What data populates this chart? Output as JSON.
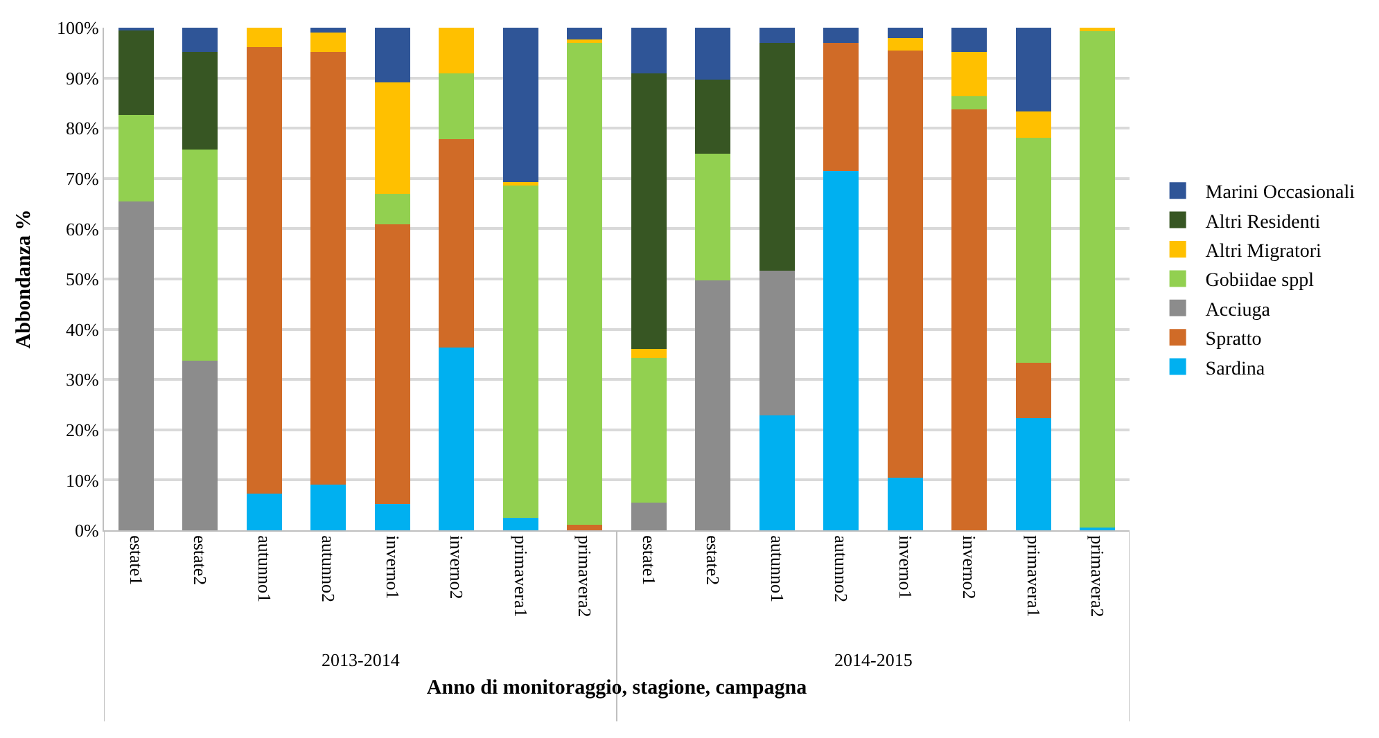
{
  "chart_data": {
    "type": "bar",
    "stacked": true,
    "xlabel": "Anno di monitoraggio, stagione, campagna",
    "ylabel": "Abbondanza %",
    "categories": [
      "estate1",
      "estate2",
      "autunno1",
      "autunno2",
      "inverno1",
      "inverno2",
      "primavera1",
      "primavera2",
      "estate1",
      "estate2",
      "autunno1",
      "autunno2",
      "inverno1",
      "inverno2",
      "primavera1",
      "primavera2"
    ],
    "annotations": [
      "2013-2014",
      "2014-2015"
    ],
    "ylim": [
      0,
      100
    ],
    "yticks": [
      {
        "value": 0,
        "label": "0%"
      },
      {
        "value": 10,
        "label": "10%"
      },
      {
        "value": 20,
        "label": "20%"
      },
      {
        "value": 30,
        "label": "30%"
      },
      {
        "value": 40,
        "label": "40%"
      },
      {
        "value": 50,
        "label": "50%"
      },
      {
        "value": 60,
        "label": "60%"
      },
      {
        "value": 70,
        "label": "70%"
      },
      {
        "value": 80,
        "label": "80%"
      },
      {
        "value": 90,
        "label": "90%"
      },
      {
        "value": 100,
        "label": "100%"
      }
    ],
    "grid": "y",
    "legend": "right",
    "series": [
      {
        "name": "Sardina",
        "color": "#00b0f0",
        "values": [
          0,
          0,
          7.3,
          9.1,
          5.2,
          36.4,
          2.5,
          0,
          0,
          0,
          22.9,
          71.5,
          10.5,
          0,
          22.3,
          0.6
        ]
      },
      {
        "name": "Spratto",
        "color": "#d06b27",
        "values": [
          0,
          0,
          88.8,
          86.1,
          55.7,
          41.4,
          0,
          1.1,
          0,
          0,
          0,
          25.5,
          85.0,
          83.8,
          11.1,
          0
        ]
      },
      {
        "name": "Acciuga",
        "color": "#8c8c8c",
        "values": [
          65.4,
          33.8,
          0,
          0,
          0,
          0,
          0,
          0,
          5.5,
          49.7,
          28.8,
          0,
          0,
          0,
          0,
          0
        ]
      },
      {
        "name": "Gobiidae sppl",
        "color": "#92d050",
        "values": [
          17.3,
          42.0,
          0,
          0,
          6.1,
          13.1,
          66.3,
          95.9,
          28.8,
          25.2,
          0,
          0,
          0,
          2.5,
          44.7,
          98.7
        ]
      },
      {
        "name": "Altri Migratori",
        "color": "#ffc000",
        "values": [
          0,
          0,
          3.9,
          3.8,
          22.1,
          9.1,
          0.5,
          0.7,
          1.8,
          0,
          0,
          0,
          2.4,
          8.9,
          5.3,
          0.7
        ]
      },
      {
        "name": "Altri Residenti",
        "color": "#375623",
        "values": [
          16.8,
          19.4,
          0,
          0,
          0,
          0,
          0,
          0,
          54.8,
          14.8,
          45.3,
          0,
          0,
          0,
          0,
          0
        ]
      },
      {
        "name": "Marini Occasionali",
        "color": "#2f5597",
        "values": [
          0.5,
          4.8,
          0,
          1.0,
          10.9,
          0,
          30.7,
          2.3,
          9.1,
          10.3,
          3.0,
          3.0,
          2.1,
          4.8,
          16.6,
          0
        ]
      }
    ]
  }
}
